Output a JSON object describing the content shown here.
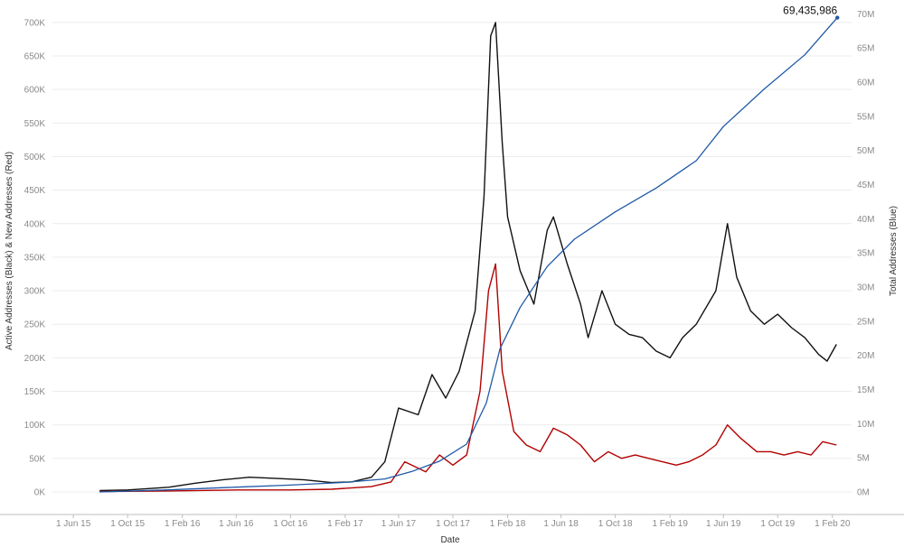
{
  "chart_data": {
    "type": "line",
    "xlabel": "Date",
    "ylabel_left": "Active Addresses (Black) & New Addresses (Red)",
    "ylabel_right": "Total Addresses (Blue)",
    "left_ylim": [
      0,
      720000
    ],
    "right_ylim": [
      0,
      70700000
    ],
    "xlim": [
      "2015-04-15",
      "2020-03-15"
    ],
    "grid": true,
    "x_ticks": [
      {
        "date": "2015-06-01",
        "label": "1 Jun 15"
      },
      {
        "date": "2015-10-01",
        "label": "1 Oct 15"
      },
      {
        "date": "2016-02-01",
        "label": "1 Feb 16"
      },
      {
        "date": "2016-06-01",
        "label": "1 Jun 16"
      },
      {
        "date": "2016-10-01",
        "label": "1 Oct 16"
      },
      {
        "date": "2017-02-01",
        "label": "1 Feb 17"
      },
      {
        "date": "2017-06-01",
        "label": "1 Jun 17"
      },
      {
        "date": "2017-10-01",
        "label": "1 Oct 17"
      },
      {
        "date": "2018-02-01",
        "label": "1 Feb 18"
      },
      {
        "date": "2018-06-01",
        "label": "1 Jun 18"
      },
      {
        "date": "2018-10-01",
        "label": "1 Oct 18"
      },
      {
        "date": "2019-02-01",
        "label": "1 Feb 19"
      },
      {
        "date": "2019-06-01",
        "label": "1 Jun 19"
      },
      {
        "date": "2019-10-01",
        "label": "1 Oct 19"
      },
      {
        "date": "2020-02-01",
        "label": "1 Feb 20"
      }
    ],
    "left_ticks": [
      {
        "value": 0,
        "label": "0K"
      },
      {
        "value": 50000,
        "label": "50K"
      },
      {
        "value": 100000,
        "label": "100K"
      },
      {
        "value": 150000,
        "label": "150K"
      },
      {
        "value": 200000,
        "label": "200K"
      },
      {
        "value": 250000,
        "label": "250K"
      },
      {
        "value": 300000,
        "label": "300K"
      },
      {
        "value": 350000,
        "label": "350K"
      },
      {
        "value": 400000,
        "label": "400K"
      },
      {
        "value": 450000,
        "label": "450K"
      },
      {
        "value": 500000,
        "label": "500K"
      },
      {
        "value": 550000,
        "label": "550K"
      },
      {
        "value": 600000,
        "label": "600K"
      },
      {
        "value": 650000,
        "label": "650K"
      },
      {
        "value": 700000,
        "label": "700K"
      }
    ],
    "right_ticks": [
      {
        "value": 0,
        "label": "0M"
      },
      {
        "value": 5000000,
        "label": "5M"
      },
      {
        "value": 10000000,
        "label": "10M"
      },
      {
        "value": 15000000,
        "label": "15M"
      },
      {
        "value": 20000000,
        "label": "20M"
      },
      {
        "value": 25000000,
        "label": "25M"
      },
      {
        "value": 30000000,
        "label": "30M"
      },
      {
        "value": 35000000,
        "label": "35M"
      },
      {
        "value": 40000000,
        "label": "40M"
      },
      {
        "value": 45000000,
        "label": "45M"
      },
      {
        "value": 50000000,
        "label": "50M"
      },
      {
        "value": 55000000,
        "label": "55M"
      },
      {
        "value": 60000000,
        "label": "60M"
      },
      {
        "value": 65000000,
        "label": "65M"
      },
      {
        "value": 70000000,
        "label": "70M"
      }
    ],
    "annotation": {
      "label": "69,435,986",
      "date": "2020-02-12",
      "value": 69435986
    },
    "colors": {
      "active": "#111111",
      "new": "#b30000",
      "total": "#1f5aa6",
      "grid": "#ececec",
      "axis": "#bdbdbd"
    },
    "series": [
      {
        "axis": "left",
        "color": "#111111",
        "points": [
          [
            "2015-07-30",
            2000
          ],
          [
            "2015-10-01",
            3000
          ],
          [
            "2016-01-01",
            7000
          ],
          [
            "2016-03-01",
            13000
          ],
          [
            "2016-05-01",
            18000
          ],
          [
            "2016-07-01",
            22000
          ],
          [
            "2016-09-01",
            20000
          ],
          [
            "2016-11-01",
            18000
          ],
          [
            "2017-01-01",
            14000
          ],
          [
            "2017-02-15",
            15000
          ],
          [
            "2017-04-01",
            22000
          ],
          [
            "2017-05-01",
            45000
          ],
          [
            "2017-06-01",
            125000
          ],
          [
            "2017-07-15",
            115000
          ],
          [
            "2017-08-15",
            175000
          ],
          [
            "2017-09-15",
            140000
          ],
          [
            "2017-10-15",
            180000
          ],
          [
            "2017-11-20",
            270000
          ],
          [
            "2017-12-10",
            440000
          ],
          [
            "2017-12-25",
            680000
          ],
          [
            "2018-01-05",
            700000
          ],
          [
            "2018-01-20",
            520000
          ],
          [
            "2018-02-01",
            410000
          ],
          [
            "2018-03-01",
            330000
          ],
          [
            "2018-04-01",
            280000
          ],
          [
            "2018-05-01",
            390000
          ],
          [
            "2018-05-15",
            410000
          ],
          [
            "2018-06-15",
            340000
          ],
          [
            "2018-07-15",
            280000
          ],
          [
            "2018-08-01",
            230000
          ],
          [
            "2018-09-01",
            300000
          ],
          [
            "2018-10-01",
            250000
          ],
          [
            "2018-11-01",
            235000
          ],
          [
            "2018-12-01",
            230000
          ],
          [
            "2019-01-01",
            210000
          ],
          [
            "2019-02-01",
            200000
          ],
          [
            "2019-03-01",
            230000
          ],
          [
            "2019-04-01",
            250000
          ],
          [
            "2019-05-15",
            300000
          ],
          [
            "2019-06-10",
            400000
          ],
          [
            "2019-07-01",
            320000
          ],
          [
            "2019-08-01",
            270000
          ],
          [
            "2019-09-01",
            250000
          ],
          [
            "2019-10-01",
            265000
          ],
          [
            "2019-11-01",
            245000
          ],
          [
            "2019-12-01",
            230000
          ],
          [
            "2020-01-01",
            205000
          ],
          [
            "2020-01-20",
            195000
          ],
          [
            "2020-02-10",
            220000
          ]
        ]
      },
      {
        "axis": "left",
        "color": "#b30000",
        "points": [
          [
            "2015-07-30",
            500
          ],
          [
            "2016-01-01",
            1500
          ],
          [
            "2016-06-01",
            3000
          ],
          [
            "2016-10-01",
            3000
          ],
          [
            "2017-01-01",
            4000
          ],
          [
            "2017-04-01",
            8000
          ],
          [
            "2017-05-15",
            15000
          ],
          [
            "2017-06-15",
            45000
          ],
          [
            "2017-08-01",
            30000
          ],
          [
            "2017-09-01",
            55000
          ],
          [
            "2017-10-01",
            40000
          ],
          [
            "2017-11-01",
            55000
          ],
          [
            "2017-12-01",
            150000
          ],
          [
            "2017-12-20",
            300000
          ],
          [
            "2018-01-05",
            340000
          ],
          [
            "2018-01-20",
            180000
          ],
          [
            "2018-02-15",
            90000
          ],
          [
            "2018-03-15",
            70000
          ],
          [
            "2018-04-15",
            60000
          ],
          [
            "2018-05-15",
            95000
          ],
          [
            "2018-06-15",
            85000
          ],
          [
            "2018-07-15",
            70000
          ],
          [
            "2018-08-15",
            45000
          ],
          [
            "2018-09-15",
            60000
          ],
          [
            "2018-10-15",
            50000
          ],
          [
            "2018-11-15",
            55000
          ],
          [
            "2018-12-15",
            50000
          ],
          [
            "2019-01-15",
            45000
          ],
          [
            "2019-02-15",
            40000
          ],
          [
            "2019-03-15",
            45000
          ],
          [
            "2019-04-15",
            55000
          ],
          [
            "2019-05-15",
            70000
          ],
          [
            "2019-06-10",
            100000
          ],
          [
            "2019-07-10",
            80000
          ],
          [
            "2019-08-15",
            60000
          ],
          [
            "2019-09-15",
            60000
          ],
          [
            "2019-10-15",
            55000
          ],
          [
            "2019-11-15",
            60000
          ],
          [
            "2019-12-15",
            55000
          ],
          [
            "2020-01-10",
            75000
          ],
          [
            "2020-02-10",
            70000
          ]
        ]
      },
      {
        "axis": "right",
        "color": "#1f5aa6",
        "points": [
          [
            "2015-07-30",
            0
          ],
          [
            "2016-01-01",
            300000
          ],
          [
            "2016-06-01",
            700000
          ],
          [
            "2016-10-01",
            1000000
          ],
          [
            "2017-02-01",
            1400000
          ],
          [
            "2017-05-01",
            1900000
          ],
          [
            "2017-07-01",
            3000000
          ],
          [
            "2017-09-01",
            4500000
          ],
          [
            "2017-11-01",
            7000000
          ],
          [
            "2017-12-15",
            13000000
          ],
          [
            "2018-01-15",
            21000000
          ],
          [
            "2018-03-01",
            27000000
          ],
          [
            "2018-05-01",
            33000000
          ],
          [
            "2018-07-01",
            37000000
          ],
          [
            "2018-10-01",
            41000000
          ],
          [
            "2019-01-01",
            44500000
          ],
          [
            "2019-04-01",
            48500000
          ],
          [
            "2019-06-01",
            53500000
          ],
          [
            "2019-09-01",
            59000000
          ],
          [
            "2019-12-01",
            64000000
          ],
          [
            "2020-02-12",
            69435986
          ]
        ]
      }
    ]
  }
}
